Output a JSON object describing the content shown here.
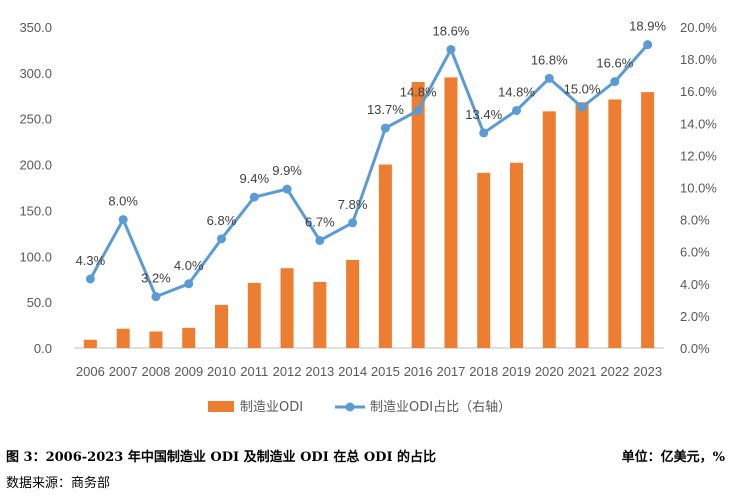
{
  "chart_data": {
    "type": "bar",
    "categories": [
      "2006",
      "2007",
      "2008",
      "2009",
      "2010",
      "2011",
      "2012",
      "2013",
      "2014",
      "2015",
      "2016",
      "2017",
      "2018",
      "2019",
      "2020",
      "2021",
      "2022",
      "2023"
    ],
    "series": [
      {
        "name": "制造业ODI",
        "type": "bar",
        "axis": "left",
        "color": "#ED7D31",
        "values": [
          9,
          21,
          18,
          22,
          47,
          71,
          87,
          72,
          96,
          200,
          290,
          295,
          191,
          202,
          258,
          268,
          271,
          279
        ]
      },
      {
        "name": "制造业ODI占比（右轴）",
        "type": "line",
        "axis": "right",
        "color": "#5B9BD5",
        "values": [
          4.3,
          8.0,
          3.2,
          4.0,
          6.8,
          9.4,
          9.9,
          6.7,
          7.8,
          13.7,
          14.8,
          18.6,
          13.4,
          14.8,
          16.8,
          15.0,
          16.6,
          18.9
        ],
        "labels": [
          "4.3%",
          "8.0%",
          "3.2%",
          "4.0%",
          "6.8%",
          "9.4%",
          "9.9%",
          "6.7%",
          "7.8%",
          "13.7%",
          "14.8%",
          "18.6%",
          "13.4%",
          "14.8%",
          "16.8%",
          "15.0%",
          "16.6%",
          "18.9%"
        ]
      }
    ],
    "y_left": {
      "range": [
        0,
        350
      ],
      "ticks": [
        "0.0",
        "50.0",
        "100.0",
        "150.0",
        "200.0",
        "250.0",
        "300.0",
        "350.0"
      ]
    },
    "y_right": {
      "range": [
        0,
        20
      ],
      "ticks": [
        "0.0%",
        "2.0%",
        "4.0%",
        "6.0%",
        "8.0%",
        "10.0%",
        "12.0%",
        "14.0%",
        "16.0%",
        "18.0%",
        "20.0%"
      ]
    },
    "grid": false,
    "legend": "bottom"
  },
  "caption": {
    "title": "图 3：2006-2023 年中国制造业 ODI 及制造业 ODI 在总 ODI 的占比",
    "unit": "单位：亿美元，%",
    "source": "数据来源：商务部"
  }
}
